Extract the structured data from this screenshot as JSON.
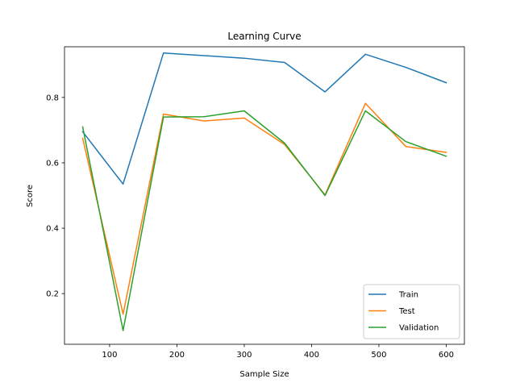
{
  "chart_data": {
    "type": "line",
    "title": "Learning Curve",
    "xlabel": "Sample Size",
    "ylabel": "Score",
    "x": [
      60,
      120,
      180,
      240,
      300,
      360,
      420,
      480,
      540,
      600
    ],
    "xlim": [
      33,
      627
    ],
    "ylim": [
      0.045,
      0.955
    ],
    "xticks": [
      100,
      200,
      300,
      400,
      500,
      600
    ],
    "yticks": [
      0.2,
      0.4,
      0.6,
      0.8
    ],
    "ytick_labels": [
      "0.2",
      "0.4",
      "0.6",
      "0.8"
    ],
    "xtick_labels": [
      "100",
      "200",
      "300",
      "400",
      "500",
      "600"
    ],
    "grid": false,
    "legend_position": "lower-right",
    "series": [
      {
        "name": "Train",
        "color": "#1f77b4",
        "values": [
          0.695,
          0.535,
          0.936,
          0.928,
          0.92,
          0.907,
          0.817,
          0.932,
          0.892,
          0.845
        ]
      },
      {
        "name": "Test",
        "color": "#ff7f0e",
        "values": [
          0.675,
          0.137,
          0.749,
          0.728,
          0.737,
          0.656,
          0.502,
          0.782,
          0.65,
          0.632
        ]
      },
      {
        "name": "Validation",
        "color": "#2ca02c",
        "values": [
          0.71,
          0.087,
          0.74,
          0.741,
          0.759,
          0.66,
          0.5,
          0.759,
          0.665,
          0.62
        ]
      }
    ]
  }
}
